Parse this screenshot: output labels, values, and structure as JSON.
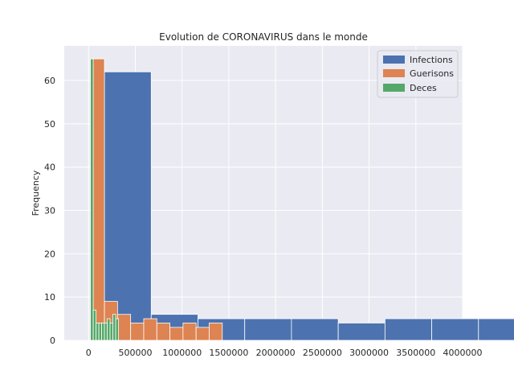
{
  "chart_data": {
    "type": "histogram",
    "title": "Evolution de CORONAVIRUS dans le monde",
    "xlabel": "",
    "ylabel": "Frequency",
    "xlim": [
      -260000,
      4000000
    ],
    "ylim": [
      0,
      68
    ],
    "xticks": [
      0,
      500000,
      1000000,
      1500000,
      2000000,
      2500000,
      3000000,
      3500000,
      4000000
    ],
    "xtick_labels": [
      "0",
      "500000",
      "1000000",
      "1500000",
      "2000000",
      "2500000",
      "3000000",
      "3500000",
      "4000000"
    ],
    "yticks": [
      0,
      10,
      20,
      30,
      40,
      50,
      60
    ],
    "ytick_labels": [
      "0",
      "10",
      "20",
      "30",
      "40",
      "50",
      "60"
    ],
    "grid": true,
    "legend_position": "top-right",
    "series": [
      {
        "name": "Infections",
        "color": "#4c72b0",
        "bin_start": 170000,
        "bin_width": 500000,
        "counts": [
          62,
          6,
          5,
          5,
          5,
          4,
          5,
          5,
          5,
          5
        ]
      },
      {
        "name": "Guerisons",
        "color": "#dd8452",
        "bin_start": 30000,
        "bin_width": 140000,
        "counts": [
          65,
          9,
          6,
          4,
          5,
          4,
          3,
          4,
          3,
          4
        ]
      },
      {
        "name": "Deces",
        "color": "#55a868",
        "bin_start": 20000,
        "bin_width": 30000,
        "counts": [
          65,
          7,
          4,
          4,
          4,
          4,
          5,
          4,
          6,
          5
        ]
      }
    ]
  }
}
